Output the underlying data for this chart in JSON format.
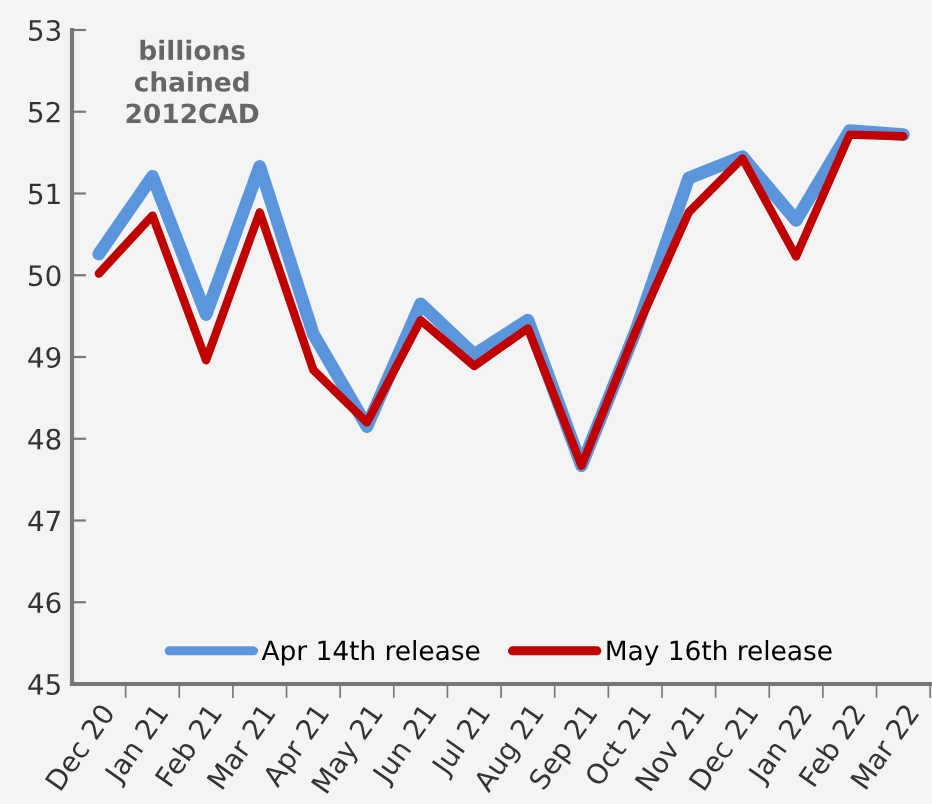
{
  "chart_data": {
    "type": "line",
    "ylabel": "billions\nchained\n2012CAD",
    "categories": [
      "Dec 20",
      "Jan 21",
      "Feb 21",
      "Mar 21",
      "Apr 21",
      "May 21",
      "Jun 21",
      "Jul 21",
      "Aug 21",
      "Sep 21",
      "Oct 21",
      "Nov 21",
      "Dec 21",
      "Jan 22",
      "Feb 22",
      "Mar 22"
    ],
    "series": [
      {
        "name": "Apr 14th release",
        "color": "#5b96dc",
        "values": [
          50.26,
          51.21,
          49.52,
          51.33,
          49.28,
          48.15,
          49.65,
          49.03,
          49.45,
          47.67,
          49.3,
          51.19,
          51.45,
          50.67,
          51.77,
          51.72
        ]
      },
      {
        "name": "May 16th release",
        "color": "#c00000",
        "values": [
          50.02,
          50.73,
          48.96,
          50.77,
          48.84,
          48.2,
          49.45,
          48.89,
          49.35,
          47.67,
          49.3,
          50.77,
          51.43,
          50.23,
          51.72,
          51.7
        ]
      }
    ],
    "ylim": [
      45,
      53
    ],
    "yticks": [
      45,
      46,
      47,
      48,
      49,
      50,
      51,
      52,
      53
    ],
    "grid": false,
    "legend": "bottom",
    "marker": "none",
    "line_style": "solid"
  }
}
